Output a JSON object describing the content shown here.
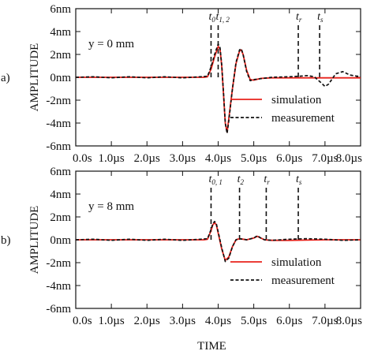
{
  "chart_data": [
    {
      "type": "line",
      "panel_label": "a)",
      "annotation": "y = 0 mm",
      "ylabel": "AMPLITUDE",
      "xlabel": "",
      "ylim": [
        -6,
        6
      ],
      "xlim": [
        0,
        8
      ],
      "y_ticks": [
        "-6nm",
        "-4nm",
        "-2nm",
        "0nm",
        "2nm",
        "4nm",
        "6nm"
      ],
      "x_ticks": [
        "0.0s",
        "1.0µs",
        "2.0µs",
        "3.0µs",
        "4.0µs",
        "5.0µs",
        "6.0µs",
        "7.0µs",
        "8.0µs"
      ],
      "legend": "lower-right",
      "markers": [
        {
          "base": "t",
          "sub": "0",
          "x": 3.8
        },
        {
          "base": "t",
          "sub": "1, 2",
          "x": 4.0
        },
        {
          "base": "t",
          "sub": "r",
          "x": 6.25
        },
        {
          "base": "t",
          "sub": "s",
          "x": 6.85
        }
      ],
      "series": [
        {
          "name": "simulation",
          "color": "#e8221b",
          "style": "solid",
          "x": [
            0,
            3.6,
            3.7,
            3.8,
            3.9,
            4.0,
            4.05,
            4.1,
            4.15,
            4.2,
            4.25,
            4.3,
            4.4,
            4.5,
            4.6,
            4.65,
            4.7,
            4.8,
            4.9,
            5.0,
            5.2,
            5.5,
            6.0,
            7.0,
            8.0
          ],
          "y": [
            0,
            0,
            0.05,
            0.7,
            1.8,
            2.7,
            2.5,
            1.0,
            -1.5,
            -4.0,
            -4.8,
            -3.6,
            -1.0,
            1.2,
            2.3,
            2.4,
            2.0,
            0.6,
            -0.2,
            -0.25,
            -0.1,
            -0.05,
            -0.05,
            -0.05,
            -0.05
          ]
        },
        {
          "name": "measurement",
          "color": "#111111",
          "style": "dashed",
          "x": [
            0,
            0.5,
            1.0,
            1.5,
            2.0,
            2.5,
            3.0,
            3.5,
            3.7,
            3.8,
            3.9,
            4.0,
            4.05,
            4.1,
            4.15,
            4.2,
            4.25,
            4.3,
            4.4,
            4.5,
            4.6,
            4.65,
            4.7,
            4.8,
            4.9,
            5.0,
            5.5,
            6.0,
            6.3,
            6.5,
            6.7,
            6.9,
            7.0,
            7.1,
            7.3,
            7.5,
            7.7,
            7.9,
            8.0
          ],
          "y": [
            0,
            0.05,
            -0.05,
            0.05,
            -0.05,
            0.05,
            -0.05,
            0.05,
            0.1,
            0.9,
            2.0,
            2.9,
            2.6,
            1.1,
            -1.4,
            -4.0,
            -4.9,
            -3.8,
            -1.0,
            1.3,
            2.4,
            2.5,
            2.0,
            0.5,
            -0.3,
            -0.2,
            0,
            0.05,
            0.1,
            0.15,
            0.05,
            -0.5,
            -0.8,
            -0.6,
            0.3,
            0.5,
            0.2,
            0.1,
            0.1
          ]
        }
      ]
    },
    {
      "type": "line",
      "panel_label": "b)",
      "annotation": "y = 8 mm",
      "ylabel": "AMPLITUDE",
      "xlabel": "TIME",
      "ylim": [
        -6,
        6
      ],
      "xlim": [
        0,
        8
      ],
      "y_ticks": [
        "-6nm",
        "-4nm",
        "-2nm",
        "0nm",
        "2nm",
        "4nm",
        "6nm"
      ],
      "x_ticks": [
        "0.0s",
        "1.0µs",
        "2.0µs",
        "3.0µs",
        "4.0µs",
        "5.0µs",
        "6.0µs",
        "7.0µs",
        "8.0µs"
      ],
      "legend": "lower-right",
      "markers": [
        {
          "base": "t",
          "sub": "0, 1",
          "x": 3.8
        },
        {
          "base": "t",
          "sub": "2",
          "x": 4.6
        },
        {
          "base": "t",
          "sub": "r",
          "x": 5.35
        },
        {
          "base": "t",
          "sub": "s",
          "x": 6.25
        }
      ],
      "series": [
        {
          "name": "simulation",
          "color": "#e8221b",
          "style": "solid",
          "x": [
            0,
            3.6,
            3.7,
            3.8,
            3.85,
            3.9,
            3.95,
            4.0,
            4.1,
            4.2,
            4.3,
            4.4,
            4.5,
            4.6,
            4.7,
            4.8,
            5.0,
            5.1,
            5.2,
            5.3,
            5.5,
            6.0,
            7.0,
            8.0
          ],
          "y": [
            0,
            0,
            0.05,
            0.8,
            1.3,
            1.5,
            1.3,
            0.6,
            -0.8,
            -1.8,
            -1.5,
            -0.6,
            0.0,
            0.1,
            0.05,
            0.0,
            0.15,
            0.3,
            0.15,
            0.0,
            -0.05,
            -0.05,
            0,
            0
          ]
        },
        {
          "name": "measurement",
          "color": "#111111",
          "style": "dashed",
          "x": [
            0,
            0.5,
            1.0,
            1.5,
            2.0,
            2.5,
            3.0,
            3.5,
            3.7,
            3.8,
            3.85,
            3.9,
            3.95,
            4.0,
            4.1,
            4.2,
            4.3,
            4.4,
            4.5,
            4.6,
            4.7,
            4.8,
            5.0,
            5.1,
            5.2,
            5.3,
            5.5,
            6.0,
            6.5,
            7.0,
            7.5,
            8.0
          ],
          "y": [
            0,
            0.05,
            -0.05,
            0.05,
            -0.05,
            0.05,
            -0.05,
            0.05,
            0.1,
            0.9,
            1.4,
            1.6,
            1.4,
            0.7,
            -0.7,
            -1.9,
            -1.6,
            -0.6,
            0.0,
            0.1,
            0.05,
            0.0,
            0.15,
            0.35,
            0.15,
            0.0,
            -0.05,
            0.05,
            0.1,
            0.05,
            -0.05,
            0
          ]
        }
      ]
    }
  ]
}
